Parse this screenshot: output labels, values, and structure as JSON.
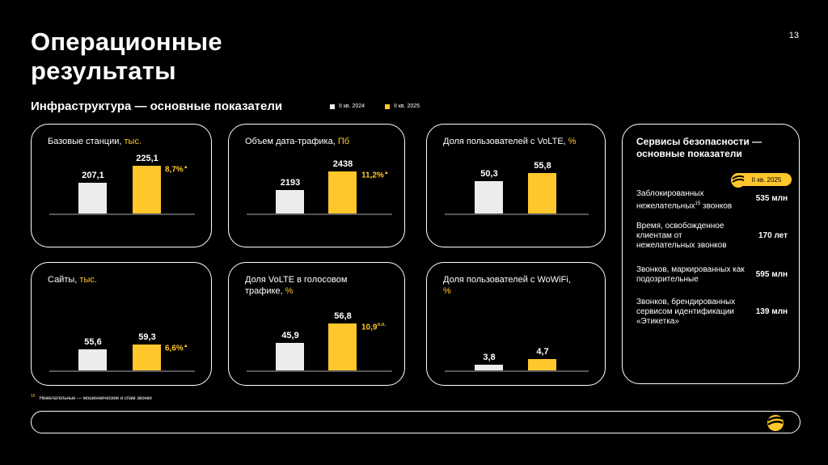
{
  "page": {
    "title_line1": "Операционные",
    "title_line2": "результаты",
    "page_number": "13",
    "subtitle": "Инфраструктура — основные показатели",
    "legend": [
      {
        "label": "II кв. 2024",
        "color": "#ECECEC"
      },
      {
        "label": "II кв. 2025",
        "color": "#FFC72C"
      }
    ],
    "footnote_mark": "15",
    "footnote_text": "Нежелательные — мошеннические и спам звонки"
  },
  "cards": [
    {
      "title": "Базовые станции,",
      "unit": "тыс.",
      "v2024": "207,1",
      "v2025": "225,1",
      "growth": "8,7%",
      "growth_sup": "▲"
    },
    {
      "title": "Объем дата-трафика,",
      "unit": "Пб",
      "v2024": "2193",
      "v2025": "2438",
      "growth": "11,2%",
      "growth_sup": "▲"
    },
    {
      "title": "Доля пользователей с VoLTE,",
      "unit": "%",
      "v2024": "50,3",
      "v2025": "55,8",
      "growth": "",
      "growth_sup": ""
    },
    {
      "title": "Сайты,",
      "unit": "тыс.",
      "v2024": "55,6",
      "v2025": "59,3",
      "growth": "6,6%",
      "growth_sup": "▲"
    },
    {
      "title": "Доля VoLTE в голосовом трафике,",
      "unit": "%",
      "v2024": "45,9",
      "v2025": "56,8",
      "growth": "10,9",
      "growth_sup": "п.п."
    },
    {
      "title": "Доля пользователей с WoWiFi,",
      "unit": "%",
      "v2024": "3,8",
      "v2025": "4,7",
      "growth": "",
      "growth_sup": ""
    }
  ],
  "chart_data": [
    {
      "type": "bar",
      "title": "Базовые станции, тыс.",
      "categories": [
        "II кв. 2024",
        "II кв. 2025"
      ],
      "values": [
        207.1,
        225.1
      ]
    },
    {
      "type": "bar",
      "title": "Объем дата-трафика, Пб",
      "categories": [
        "II кв. 2024",
        "II кв. 2025"
      ],
      "values": [
        2193,
        2438
      ]
    },
    {
      "type": "bar",
      "title": "Доля пользователей с VoLTE, %",
      "categories": [
        "II кв. 2024",
        "II кв. 2025"
      ],
      "values": [
        50.3,
        55.8
      ]
    },
    {
      "type": "bar",
      "title": "Сайты, тыс.",
      "categories": [
        "II кв. 2024",
        "II кв. 2025"
      ],
      "values": [
        55.6,
        59.3
      ]
    },
    {
      "type": "bar",
      "title": "Доля VoLTE в голосовом трафике, %",
      "categories": [
        "II кв. 2024",
        "II кв. 2025"
      ],
      "values": [
        45.9,
        56.8
      ]
    },
    {
      "type": "bar",
      "title": "Доля пользователей с WoWiFi, %",
      "categories": [
        "II кв. 2024",
        "II кв. 2025"
      ],
      "values": [
        3.8,
        4.7
      ]
    }
  ],
  "security": {
    "title": "Сервисы безопасности — основные показатели",
    "badge": "II кв. 2025",
    "rows": [
      {
        "label": "Заблокированных нежелательных",
        "sup": "15",
        "label_end": " звонков",
        "value": "535 млн"
      },
      {
        "label": "Время, освобожденное клиентам от нежелательных звонков",
        "sup": "",
        "label_end": "",
        "value": "170 лет"
      },
      {
        "label": "Звонков, маркированных как подозрительные",
        "sup": "",
        "label_end": "",
        "value": "595 млн"
      },
      {
        "label": "Звонков, брендированных сервисом идентификации «Этикетка»",
        "sup": "",
        "label_end": "",
        "value": "139 млн"
      }
    ]
  },
  "colors": {
    "accent": "#FFC72C",
    "bar_prev": "#ECECEC"
  }
}
